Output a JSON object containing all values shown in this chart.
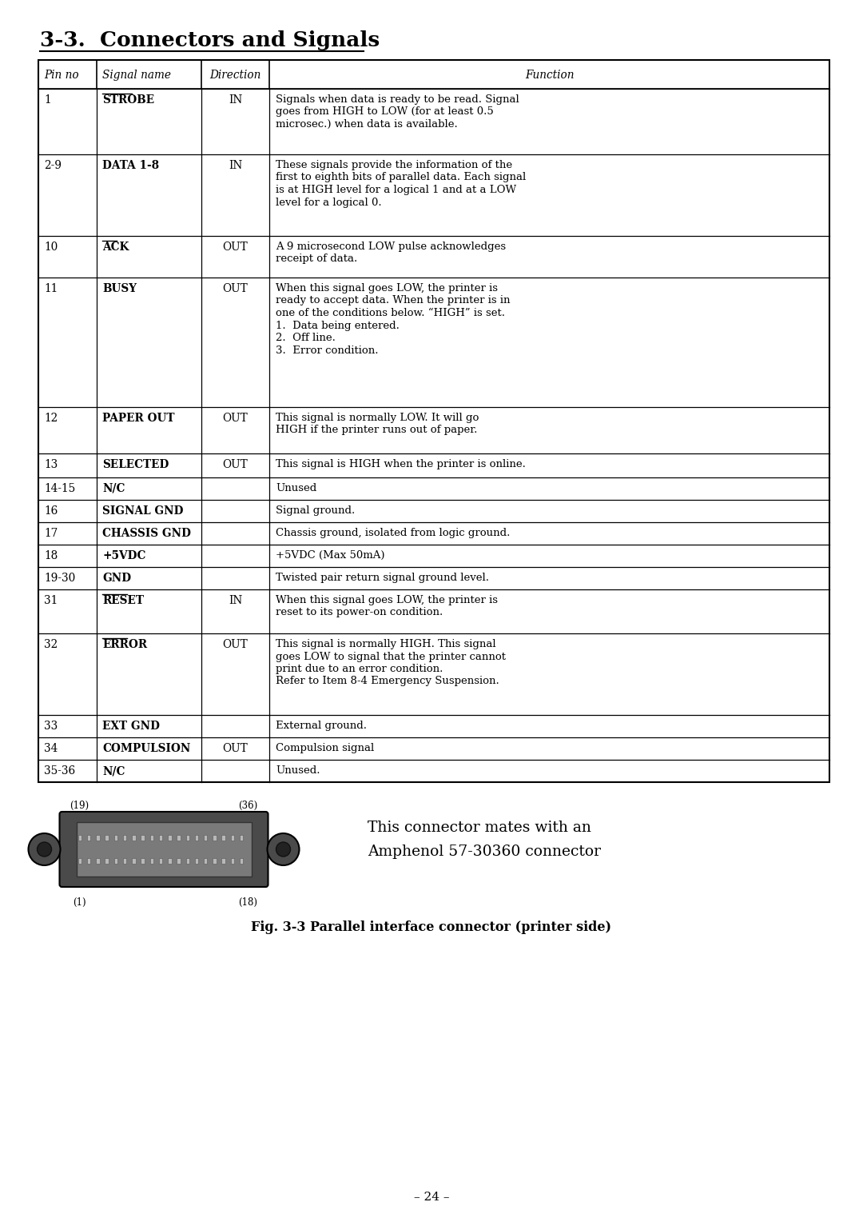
{
  "title": "3-3.  Connectors and Signals",
  "bg_color": "#ffffff",
  "text_color": "#000000",
  "table_header": [
    "Pin no",
    "Signal name",
    "Direction",
    "Function"
  ],
  "rows": [
    [
      "1",
      "STROBE",
      true,
      "IN",
      "Signals when data is ready to be read. Signal\ngoes from HIGH to LOW (for at least 0.5\nmicrosec.) when data is available."
    ],
    [
      "2-9",
      "DATA 1-8",
      false,
      "IN",
      "These signals provide the information of the\nfirst to eighth bits of parallel data. Each signal\nis at HIGH level for a logical 1 and at a LOW\nlevel for a logical 0."
    ],
    [
      "10",
      "ACK",
      true,
      "OUT",
      "A 9 microsecond LOW pulse acknowledges\nreceipt of data."
    ],
    [
      "11",
      "BUSY",
      false,
      "OUT",
      "When this signal goes LOW, the printer is\nready to accept data. When the printer is in\none of the conditions below. “HIGH” is set.\n1.  Data being entered.\n2.  Off line.\n3.  Error condition."
    ],
    [
      "12",
      "PAPER OUT",
      false,
      "OUT",
      "This signal is normally LOW. It will go\nHIGH if the printer runs out of paper."
    ],
    [
      "13",
      "SELECTED",
      false,
      "OUT",
      "This signal is HIGH when the printer is online."
    ],
    [
      "14-15",
      "N/C",
      false,
      "",
      "Unused"
    ],
    [
      "16",
      "SIGNAL GND",
      false,
      "",
      "Signal ground."
    ],
    [
      "17",
      "CHASSIS GND",
      false,
      "",
      "Chassis ground, isolated from logic ground."
    ],
    [
      "18",
      "+5VDC",
      false,
      "",
      "+5VDC (Max 50mA)"
    ],
    [
      "19-30",
      "GND",
      false,
      "",
      "Twisted pair return signal ground level."
    ],
    [
      "31",
      "RESET",
      true,
      "IN",
      "When this signal goes LOW, the printer is\nreset to its power-on condition."
    ],
    [
      "32",
      "ERROR",
      true,
      "OUT",
      "This signal is normally HIGH. This signal\ngoes LOW to signal that the printer cannot\nprint due to an error condition.\nRefer to Item 8-4 Emergency Suspension."
    ],
    [
      "33",
      "EXT GND",
      false,
      "",
      "External ground."
    ],
    [
      "34",
      "COMPULSION",
      false,
      "OUT",
      "Compulsion signal"
    ],
    [
      "35-36",
      "N/C",
      false,
      "",
      "Unused."
    ]
  ],
  "connector_note_line1": "This connector mates with an",
  "connector_note_line2": "Amphenol 57-30360 connector",
  "fig_caption": "Fig. 3-3 Parallel interface connector (printer side)",
  "page_number": "– 24 –"
}
